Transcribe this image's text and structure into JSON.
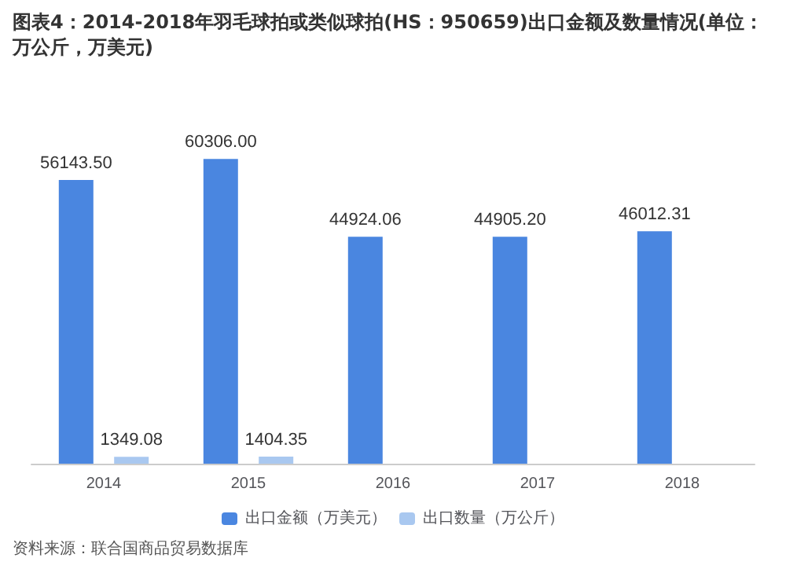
{
  "chart_data": {
    "type": "bar",
    "title": "图表4：2014-2018年羽毛球拍或类似球拍(HS：950659)出口金额及数量情况(单位：万公斤，万美元)",
    "categories": [
      "2014",
      "2015",
      "2016",
      "2017",
      "2018"
    ],
    "series": [
      {
        "name": "出口金额（万美元）",
        "color": "#4a86e0",
        "values": [
          56143.5,
          60306.0,
          44924.06,
          44905.2,
          46012.31
        ],
        "value_labels": [
          "56143.50",
          "60306.00",
          "44924.06",
          "44905.20",
          "46012.31"
        ]
      },
      {
        "name": "出口数量（万公斤）",
        "color": "#a9c8f0",
        "values": [
          1349.08,
          1404.35,
          null,
          null,
          null
        ],
        "value_labels": [
          "1349.08",
          "1404.35",
          null,
          null,
          null
        ]
      }
    ],
    "legend": "bottom",
    "annotations": [
      "资料来源：联合国商品贸易数据库"
    ]
  }
}
